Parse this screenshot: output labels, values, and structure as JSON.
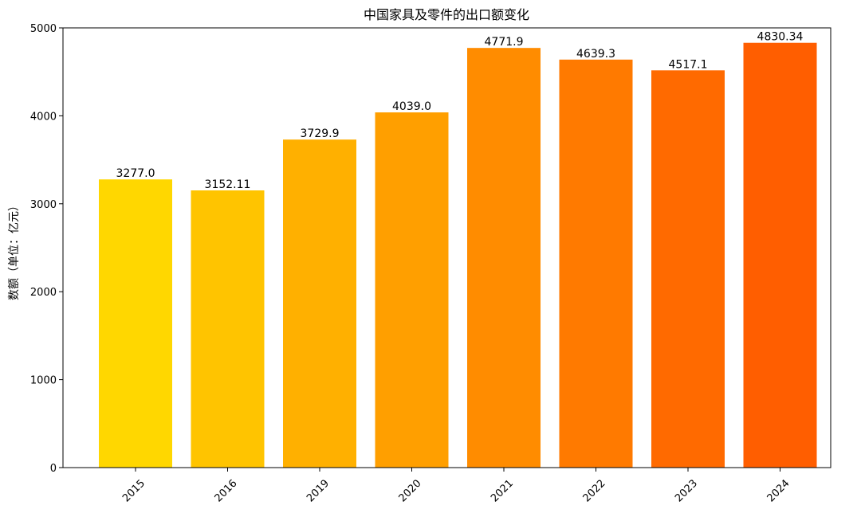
{
  "chart_data": {
    "type": "bar",
    "title": "中国家具及零件的出口额变化",
    "xlabel": "",
    "ylabel": "数额（单位：亿元）",
    "categories": [
      "2015",
      "2016",
      "2019",
      "2020",
      "2021",
      "2022",
      "2023",
      "2024"
    ],
    "values": [
      3277.0,
      3152.11,
      3729.9,
      4039.0,
      4771.9,
      4639.3,
      4517.1,
      4830.34
    ],
    "value_labels": [
      "3277.0",
      "3152.11",
      "3729.9",
      "4039.0",
      "4771.9",
      "4639.3",
      "4517.1",
      "4830.34"
    ],
    "bar_colors": [
      "#FFD700",
      "#FFC400",
      "#FFB000",
      "#FF9F00",
      "#FF8C00",
      "#FF7A00",
      "#FF6A00",
      "#FF5E00"
    ],
    "ylim": [
      0,
      5000
    ],
    "yticks": [
      0,
      1000,
      2000,
      3000,
      4000,
      5000
    ],
    "x_tick_rotation": 45,
    "grid": false,
    "legend": "none"
  }
}
